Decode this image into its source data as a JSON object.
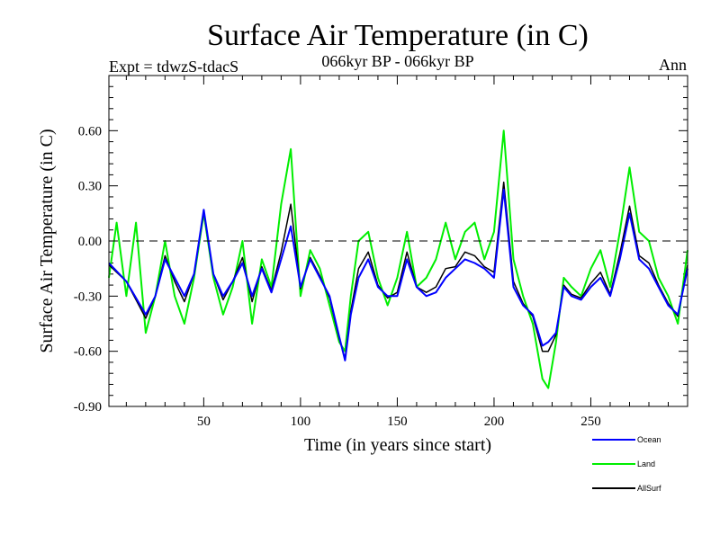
{
  "chart_data": {
    "type": "line",
    "title": "Surface Air Temperature (in C)",
    "subtitle": "066kyr BP - 066kyr BP",
    "experiment_label": "Expt = tdwzS-tdacS",
    "period_label": "Ann",
    "xlabel": "Time (in years since start)",
    "ylabel": "Surface Air Temperature (in C)",
    "xlim": [
      1,
      300
    ],
    "ylim": [
      -0.9,
      0.9
    ],
    "x_ticks": [
      50,
      100,
      150,
      200,
      250
    ],
    "x_tick_labels": [
      "50",
      "100",
      "150",
      "200",
      "250"
    ],
    "y_ticks": [
      -0.9,
      -0.6,
      -0.3,
      0.0,
      0.3,
      0.6
    ],
    "y_tick_labels": [
      "-0.90",
      "-0.60",
      "-0.30",
      "0.00",
      "0.30",
      "0.60"
    ],
    "reference_line": {
      "y": 0.0,
      "style": "dashed",
      "color": "#000000"
    },
    "legend_position": "bottom-right outside plot",
    "series": [
      {
        "name": "Ocean",
        "color": "#0000ff",
        "x": [
          1,
          10,
          20,
          25,
          30,
          35,
          40,
          45,
          50,
          55,
          60,
          65,
          70,
          75,
          80,
          85,
          90,
          95,
          100,
          105,
          110,
          115,
          120,
          123,
          126,
          130,
          135,
          140,
          145,
          150,
          155,
          160,
          165,
          170,
          175,
          180,
          185,
          190,
          195,
          200,
          205,
          210,
          215,
          220,
          225,
          228,
          232,
          236,
          240,
          245,
          250,
          255,
          260,
          265,
          270,
          275,
          280,
          285,
          290,
          295,
          300
        ],
        "y": [
          -0.12,
          -0.22,
          -0.4,
          -0.3,
          -0.1,
          -0.2,
          -0.3,
          -0.18,
          0.17,
          -0.18,
          -0.3,
          -0.22,
          -0.12,
          -0.3,
          -0.15,
          -0.28,
          -0.1,
          0.08,
          -0.25,
          -0.1,
          -0.2,
          -0.3,
          -0.52,
          -0.65,
          -0.4,
          -0.2,
          -0.1,
          -0.25,
          -0.3,
          -0.3,
          -0.1,
          -0.25,
          -0.3,
          -0.28,
          -0.2,
          -0.15,
          -0.1,
          -0.12,
          -0.15,
          -0.2,
          0.28,
          -0.25,
          -0.35,
          -0.4,
          -0.57,
          -0.55,
          -0.5,
          -0.25,
          -0.3,
          -0.32,
          -0.25,
          -0.2,
          -0.3,
          -0.1,
          0.15,
          -0.1,
          -0.15,
          -0.25,
          -0.35,
          -0.4,
          -0.15
        ]
      },
      {
        "name": "Land",
        "color": "#00ee00",
        "x": [
          1,
          5,
          10,
          15,
          20,
          25,
          30,
          35,
          40,
          45,
          50,
          55,
          60,
          65,
          70,
          75,
          80,
          85,
          90,
          95,
          100,
          105,
          110,
          115,
          120,
          123,
          126,
          130,
          135,
          140,
          145,
          150,
          155,
          160,
          165,
          170,
          175,
          180,
          185,
          190,
          195,
          200,
          205,
          210,
          215,
          220,
          225,
          228,
          232,
          236,
          240,
          245,
          250,
          255,
          260,
          265,
          270,
          275,
          280,
          285,
          290,
          295,
          300
        ],
        "y": [
          -0.2,
          0.1,
          -0.3,
          0.1,
          -0.5,
          -0.3,
          0.0,
          -0.3,
          -0.45,
          -0.2,
          0.15,
          -0.2,
          -0.4,
          -0.25,
          0.0,
          -0.45,
          -0.1,
          -0.25,
          0.2,
          0.5,
          -0.3,
          -0.05,
          -0.15,
          -0.35,
          -0.55,
          -0.6,
          -0.3,
          0.0,
          0.05,
          -0.2,
          -0.35,
          -0.2,
          0.05,
          -0.25,
          -0.2,
          -0.1,
          0.1,
          -0.1,
          0.05,
          0.1,
          -0.1,
          0.05,
          0.6,
          -0.1,
          -0.3,
          -0.45,
          -0.75,
          -0.8,
          -0.55,
          -0.2,
          -0.25,
          -0.3,
          -0.15,
          -0.05,
          -0.25,
          0.05,
          0.4,
          0.05,
          0.0,
          -0.2,
          -0.3,
          -0.45,
          -0.05
        ]
      },
      {
        "name": "AllSurf",
        "color": "#000000",
        "x": [
          1,
          10,
          20,
          25,
          30,
          35,
          40,
          45,
          50,
          55,
          60,
          65,
          70,
          75,
          80,
          85,
          90,
          95,
          100,
          105,
          110,
          115,
          120,
          123,
          126,
          130,
          135,
          140,
          145,
          150,
          155,
          160,
          165,
          170,
          175,
          180,
          185,
          190,
          195,
          200,
          205,
          210,
          215,
          220,
          225,
          228,
          232,
          236,
          240,
          245,
          250,
          255,
          260,
          265,
          270,
          275,
          280,
          285,
          290,
          295,
          300
        ],
        "y": [
          -0.13,
          -0.22,
          -0.42,
          -0.3,
          -0.08,
          -0.22,
          -0.33,
          -0.18,
          0.16,
          -0.18,
          -0.32,
          -0.22,
          -0.09,
          -0.33,
          -0.14,
          -0.27,
          -0.06,
          0.2,
          -0.26,
          -0.09,
          -0.19,
          -0.31,
          -0.53,
          -0.64,
          -0.38,
          -0.15,
          -0.06,
          -0.24,
          -0.31,
          -0.28,
          -0.06,
          -0.25,
          -0.28,
          -0.25,
          -0.15,
          -0.14,
          -0.06,
          -0.08,
          -0.14,
          -0.17,
          0.32,
          -0.22,
          -0.34,
          -0.41,
          -0.6,
          -0.6,
          -0.51,
          -0.24,
          -0.29,
          -0.31,
          -0.23,
          -0.17,
          -0.29,
          -0.07,
          0.19,
          -0.08,
          -0.12,
          -0.24,
          -0.34,
          -0.41,
          -0.13
        ]
      }
    ]
  }
}
